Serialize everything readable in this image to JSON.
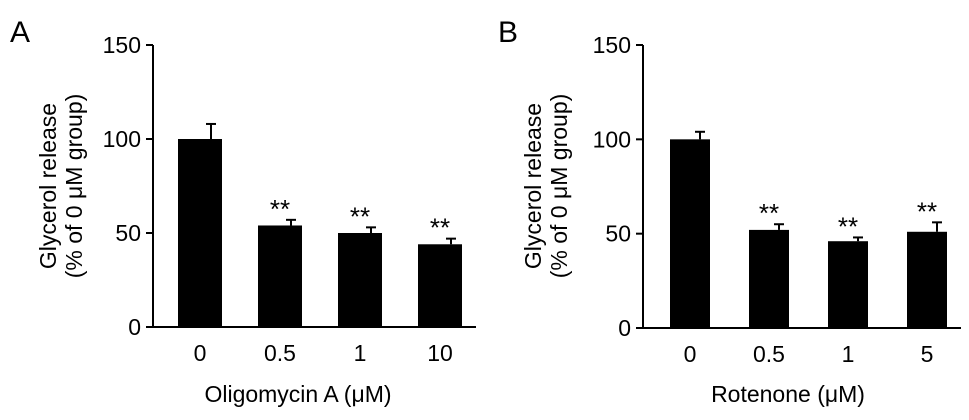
{
  "chart_data": [
    {
      "panel_label": "A",
      "type": "bar",
      "categories": [
        "0",
        "0.5",
        "1",
        "10"
      ],
      "values": [
        100,
        54,
        50,
        44
      ],
      "errors": [
        8,
        3,
        3,
        3
      ],
      "annotations": [
        "",
        "**",
        "**",
        "**"
      ],
      "ylabel_line1": "Glycerol release",
      "ylabel_line2": "(% of 0 μM group)",
      "xlabel": "Oligomycin A (μM)",
      "yticks": [
        "0",
        "50",
        "100",
        "150"
      ],
      "ylim": [
        0,
        150
      ],
      "grid": false,
      "bar_color": "#000000"
    },
    {
      "panel_label": "B",
      "type": "bar",
      "categories": [
        "0",
        "0.5",
        "1",
        "5"
      ],
      "values": [
        100,
        52,
        46,
        51
      ],
      "errors": [
        4,
        3,
        2,
        5
      ],
      "annotations": [
        "",
        "**",
        "**",
        "**"
      ],
      "ylabel_line1": "Glycerol release",
      "ylabel_line2": "(% of 0 μM group)",
      "xlabel": "Rotenone (μM)",
      "yticks": [
        "0",
        "50",
        "100",
        "150"
      ],
      "ylim": [
        0,
        150
      ],
      "grid": false,
      "bar_color": "#000000"
    }
  ]
}
